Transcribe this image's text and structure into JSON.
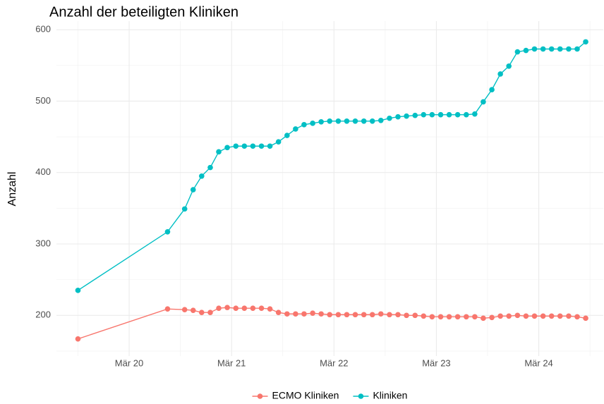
{
  "chart_data": {
    "type": "line",
    "title": "Anzahl der beteiligten Kliniken",
    "ylabel": "Anzahl",
    "x": [
      19.5,
      20.375,
      20.542,
      20.625,
      20.708,
      20.792,
      20.875,
      20.958,
      21.042,
      21.125,
      21.208,
      21.292,
      21.375,
      21.458,
      21.542,
      21.625,
      21.708,
      21.792,
      21.875,
      21.958,
      22.042,
      22.125,
      22.208,
      22.292,
      22.375,
      22.458,
      22.542,
      22.625,
      22.708,
      22.792,
      22.875,
      22.958,
      23.042,
      23.125,
      23.208,
      23.292,
      23.375,
      23.458,
      23.542,
      23.625,
      23.708,
      23.792,
      23.875,
      23.958,
      24.042,
      24.125,
      24.208,
      24.292,
      24.375,
      24.458
    ],
    "series": [
      {
        "name": "ECMO Kliniken",
        "color": "#F8766D",
        "values": [
          167,
          209,
          208,
          207,
          204,
          204,
          210,
          211,
          210,
          210,
          210,
          210,
          209,
          204,
          202,
          202,
          202,
          203,
          202,
          201,
          201,
          201,
          201,
          201,
          201,
          202,
          201,
          201,
          200,
          200,
          199,
          198,
          198,
          198,
          198,
          198,
          198,
          196,
          197,
          199,
          199,
          200,
          199,
          199,
          199,
          199,
          199,
          199,
          198,
          196
        ]
      },
      {
        "name": "Kliniken",
        "color": "#00BFC4",
        "values": [
          235,
          317,
          349,
          376,
          395,
          407,
          429,
          435,
          437,
          437,
          437,
          437,
          437,
          443,
          452,
          461,
          467,
          469,
          471,
          472,
          472,
          472,
          472,
          472,
          472,
          473,
          476,
          478,
          479,
          480,
          481,
          481,
          481,
          481,
          481,
          481,
          482,
          499,
          516,
          538,
          549,
          569,
          571,
          573,
          573,
          573,
          573,
          573,
          573,
          583
        ]
      }
    ],
    "xlim": [
      19.29,
      24.63
    ],
    "xticks": [
      {
        "value": 20,
        "label": "Mär 20"
      },
      {
        "value": 21,
        "label": "Mär 21"
      },
      {
        "value": 22,
        "label": "Mär 22"
      },
      {
        "value": 23,
        "label": "Mär 23"
      },
      {
        "value": 24,
        "label": "Mär 24"
      }
    ],
    "ylim": [
      143,
      612
    ],
    "yticks": [
      200,
      300,
      400,
      500,
      600
    ],
    "grid": true,
    "legend": "bottom"
  }
}
